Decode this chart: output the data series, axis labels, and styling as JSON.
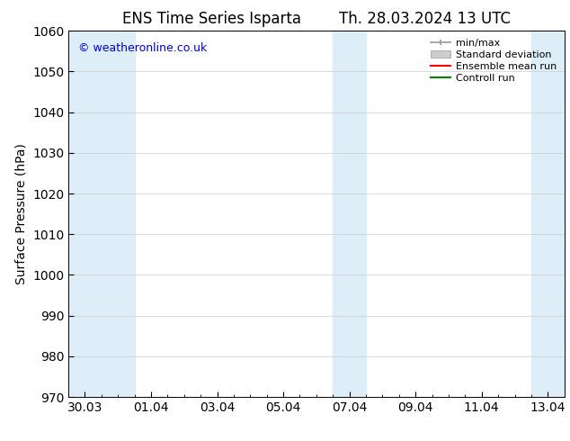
{
  "title": "ENS Time Series Isparta",
  "title2": "Th. 28.03.2024 13 UTC",
  "ylabel": "Surface Pressure (hPa)",
  "ylim": [
    970,
    1060
  ],
  "yticks": [
    970,
    980,
    990,
    1000,
    1010,
    1020,
    1030,
    1040,
    1050,
    1060
  ],
  "xtick_labels": [
    "30.03",
    "01.04",
    "03.04",
    "05.04",
    "07.04",
    "09.04",
    "11.04",
    "13.04"
  ],
  "xtick_positions": [
    0,
    2,
    4,
    6,
    8,
    10,
    12,
    14
  ],
  "xlim": [
    -0.5,
    14.5
  ],
  "shaded_regions": [
    {
      "xmin": -0.5,
      "xmax": 1.5,
      "color": "#ddeef8"
    },
    {
      "xmin": 7.5,
      "xmax": 8.5,
      "color": "#ddeef8"
    },
    {
      "xmin": 13.5,
      "xmax": 14.5,
      "color": "#ddeef8"
    }
  ],
  "watermark": "© weatheronline.co.uk",
  "watermark_color": "#0000cc",
  "bg_color": "#ffffff",
  "plot_bg_color": "#ffffff",
  "legend_entries": [
    "min/max",
    "Standard deviation",
    "Ensemble mean run",
    "Controll run"
  ],
  "legend_colors_line": [
    "#999999",
    "#bbbbbb",
    "#ff0000",
    "#008000"
  ],
  "legend_std_facecolor": "#cccccc",
  "legend_std_edgecolor": "#999999",
  "tick_color": "#000000",
  "spine_color": "#000000",
  "font_size": 10,
  "title_font_size": 12
}
